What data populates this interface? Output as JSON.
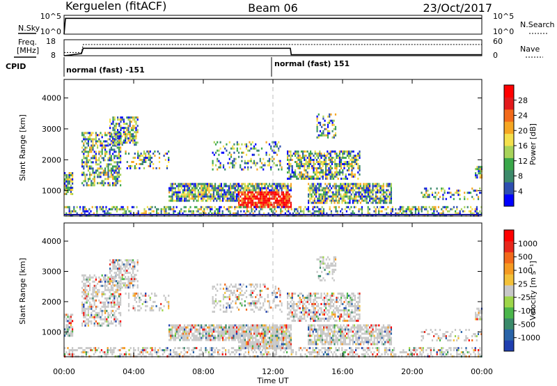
{
  "header": {
    "station": "Kerguelen (fitACF)",
    "beam": "Beam 06",
    "date": "23/Oct/2017"
  },
  "time_axis": {
    "label": "Time UT",
    "ticks": [
      "00:00",
      "04:00",
      "08:00",
      "12:00",
      "16:00",
      "20:00",
      "00:00"
    ]
  },
  "top_panels": {
    "nsky_label": "N.Sky",
    "nsky_ticks": [
      "10^5",
      "10^0"
    ],
    "nsearch_label": "N.Search",
    "nsearch_ticks": [
      "10^5",
      "10^0"
    ],
    "freq_label_1": "Freq.",
    "freq_label_2": "[MHz]",
    "freq_ticks": [
      "18",
      "8"
    ],
    "nave_label": "Nave",
    "nave_ticks": [
      "60",
      "0"
    ],
    "cpid_label": "CPID",
    "cpid_segments": [
      "normal (fast) -151",
      "normal (fast) 151"
    ]
  },
  "chart_data": [
    {
      "type": "line",
      "name": "sky-noise",
      "x_hours": [
        0,
        0.08,
        24
      ],
      "value": [
        0,
        4.2,
        4.2
      ],
      "yscale": "log",
      "ylim": [
        0,
        5
      ]
    },
    {
      "type": "line",
      "name": "frequency",
      "x_hours": [
        0,
        1,
        1.1,
        13,
        13.05,
        24
      ],
      "values_mhz": [
        10,
        10,
        15,
        15,
        15,
        15
      ],
      "ylim": [
        8,
        18
      ]
    },
    {
      "type": "line",
      "name": "nave",
      "x_hours": [
        0,
        1,
        1.1,
        13,
        13.05,
        24
      ],
      "values": [
        0,
        8,
        28,
        28,
        4,
        4
      ],
      "ylim": [
        0,
        60
      ]
    },
    {
      "type": "heatmap",
      "name": "power",
      "ylabel": "Slant Range [km]",
      "ylim": [
        180,
        4600
      ],
      "yticks": [
        "1000",
        "2000",
        "3000",
        "4000"
      ],
      "colorbar_label": "Power [dB]",
      "colorbar_ticks": [
        "4",
        "8",
        "12",
        "16",
        "20",
        "24",
        "28"
      ],
      "colorbar_colors": [
        "#0000ff",
        "#2e4fb0",
        "#3d8a6b",
        "#3aa74a",
        "#a8d35a",
        "#f4e04d",
        "#f5a623",
        "#f26a1b",
        "#e31a1c",
        "#ff0000"
      ]
    },
    {
      "type": "heatmap",
      "name": "velocity",
      "ylabel": "Slant Range [km]",
      "ylim": [
        180,
        4600
      ],
      "yticks": [
        "1000",
        "2000",
        "3000",
        "4000"
      ],
      "colorbar_label": "Velocity [m s⁻¹]",
      "colorbar_ticks": [
        "1000",
        "500",
        "100",
        "25",
        "-25",
        "-100",
        "-500",
        "-1000"
      ],
      "colorbar_colors": [
        "#1f3fb0",
        "#2a64a8",
        "#3a8a6a",
        "#4bb64b",
        "#9ed64a",
        "#c8c8c8",
        "#f3c13a",
        "#f59a22",
        "#f26a1b",
        "#e8281c",
        "#ff0000"
      ]
    }
  ]
}
